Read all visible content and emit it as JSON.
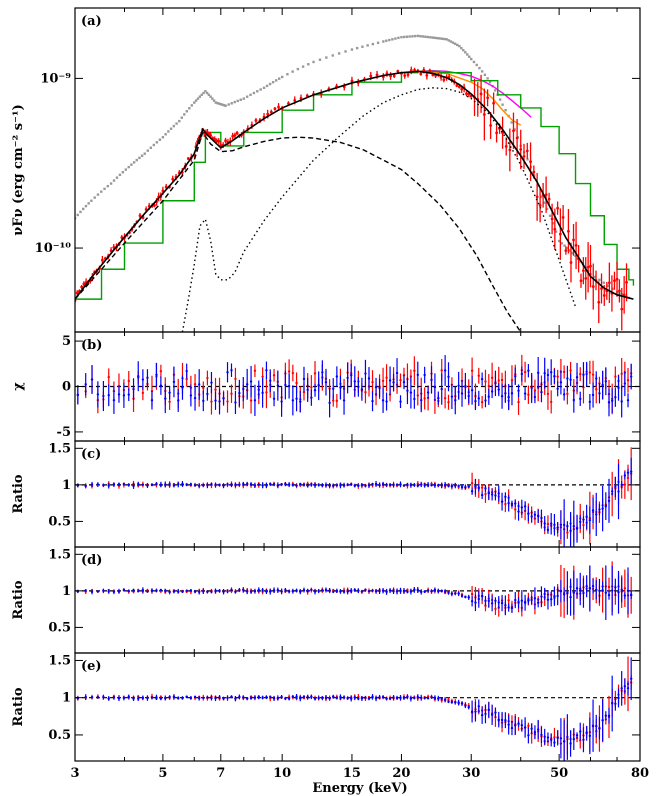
{
  "chart_data": [
    {
      "panel": "(a)",
      "type": "line",
      "ylabel": "νFν (erg cm⁻² s⁻¹)",
      "xscale": "log",
      "yscale": "log",
      "xlim": [
        3,
        80
      ],
      "ylim": [
        3.2e-11,
        2.6e-09
      ],
      "yticks": [
        {
          "value": 1e-10,
          "label": "10⁻¹⁰"
        },
        {
          "value": 1e-09,
          "label": "10⁻⁹"
        }
      ],
      "series": [
        {
          "name": "",
          "color": "#999999",
          "style": "gray-points",
          "x": [
            3.0,
            3.3,
            3.7,
            4.1,
            4.5,
            5.0,
            5.5,
            6.0,
            6.4,
            6.8,
            7.2,
            8.0,
            9.0,
            10.0,
            12.0,
            15.0,
            18.0,
            20.0,
            22.0,
            24.0,
            26.0,
            28.0,
            30.0,
            33.0,
            36.0,
            40.0,
            45.0,
            50.0,
            55.0,
            60.0,
            70.0,
            76.0
          ],
          "y": [
            1.5e-10,
            1.9e-10,
            2.4e-10,
            3e-10,
            3.6e-10,
            4.5e-10,
            5.6e-10,
            7.2e-10,
            8.4e-10,
            7.2e-10,
            6.9e-10,
            7.6e-10,
            8.8e-10,
            1.02e-09,
            1.25e-09,
            1.48e-09,
            1.65e-09,
            1.75e-09,
            1.78e-09,
            1.74e-09,
            1.7e-09,
            1.55e-09,
            1.3e-09,
            1e-09,
            7e-10,
            4e-10,
            2e-10,
            1.1e-10,
            9e-11,
            7e-11,
            5.5e-11,
            5e-11
          ]
        },
        {
          "name": "",
          "color": "#ff00ff",
          "style": "solid",
          "x": [
            22,
            24,
            26,
            28,
            30,
            32,
            34,
            36,
            38,
            40,
            42.5
          ],
          "y": [
            1.1e-09,
            1.11e-09,
            1.1e-09,
            1.07e-09,
            1.03e-09,
            9.7e-10,
            9e-10,
            8.2e-10,
            7.4e-10,
            6.7e-10,
            5.9e-10
          ]
        },
        {
          "name": "",
          "color": "#ff8c00",
          "style": "solid",
          "x": [
            22,
            26,
            30,
            32,
            34,
            36,
            38,
            40
          ],
          "y": [
            1.1e-09,
            1.07e-09,
            9.5e-10,
            8.7e-10,
            7.6e-10,
            6.5e-10,
            5.7e-10,
            5.3e-10
          ]
        },
        {
          "name": "",
          "color": "#00a000",
          "style": "step",
          "x": [
            3.0,
            3.5,
            4.0,
            5.0,
            6.0,
            6.4,
            7.0,
            8.0,
            10.0,
            12.0,
            15.0,
            20.0,
            22.0,
            25.0,
            30.0,
            35.0,
            40.0,
            45.0,
            50.0,
            55.0,
            60.0,
            65.0,
            70.0,
            75.0,
            77.0
          ],
          "y": [
            5e-11,
            7.5e-11,
            1.07e-10,
            1.9e-10,
            3.2e-10,
            4.8e-10,
            4e-10,
            4.8e-10,
            6.5e-10,
            8e-10,
            9.5e-10,
            1.08e-09,
            1.1e-09,
            1.08e-09,
            9.7e-10,
            8e-10,
            6.7e-10,
            5.2e-10,
            3.6e-10,
            2.4e-10,
            1.55e-10,
            1.05e-10,
            7.5e-11,
            6.5e-11,
            6e-11
          ]
        },
        {
          "name": "",
          "color": "#ff0000",
          "style": "data-points",
          "x": [
            3.0,
            3.2,
            3.4,
            3.7,
            4.0,
            4.3,
            4.7,
            5.0,
            5.5,
            6.0,
            6.3,
            6.6,
            7.0,
            7.5,
            8.0,
            9.0,
            10.0,
            12.0,
            15.0,
            18.0,
            20.0,
            22.0,
            24.0,
            26.0,
            28.0,
            30.0,
            33.0,
            36.0,
            40.0,
            44.0,
            48.0,
            52.0,
            56.0,
            60.0,
            65.0,
            70.0,
            75.0
          ],
          "y": [
            5e-11,
            6.2e-11,
            7.4e-11,
            9.5e-11,
            1.18e-10,
            1.42e-10,
            1.78e-10,
            2.1e-10,
            2.7e-10,
            3.6e-10,
            5e-10,
            4.6e-10,
            4.1e-10,
            4.4e-10,
            4.9e-10,
            6e-10,
            6.8e-10,
            8.2e-10,
            9.5e-10,
            1.04e-09,
            1.07e-09,
            1.1e-09,
            1.06e-09,
            1e-09,
            9e-10,
            8e-10,
            6.5e-10,
            5e-10,
            3.6e-10,
            2.5e-10,
            1.6e-10,
            1.2e-10,
            9e-11,
            6.5e-11,
            6e-11,
            5.5e-11,
            5e-11
          ]
        },
        {
          "name": "",
          "color": "#000000",
          "style": "solid-model",
          "x": [
            3.0,
            3.3,
            3.7,
            4.0,
            4.5,
            5.0,
            5.5,
            6.0,
            6.3,
            6.5,
            7.0,
            7.5,
            8.0,
            9.0,
            10.0,
            12.0,
            15.0,
            18.0,
            20.0,
            22.0,
            24.0,
            26.0,
            28.0,
            30.0,
            33.0,
            36.0,
            40.0,
            44.0,
            48.0,
            52.0,
            56.0,
            60.0,
            65.0,
            70.0,
            77.0
          ],
          "y": [
            5e-11,
            6.7e-11,
            9.3e-11,
            1.16e-10,
            1.6e-10,
            2.1e-10,
            2.7e-10,
            3.6e-10,
            5e-10,
            4.6e-10,
            3.9e-10,
            4.3e-10,
            4.8e-10,
            5.8e-10,
            6.7e-10,
            8e-10,
            9.4e-10,
            1.04e-09,
            1.08e-09,
            1.1e-09,
            1.07e-09,
            1.01e-09,
            9.2e-10,
            8.1e-10,
            6.5e-10,
            5e-10,
            3.5e-10,
            2.45e-10,
            1.65e-10,
            1.15e-10,
            8.8e-11,
            6.8e-11,
            5.8e-11,
            5.3e-11,
            5e-11
          ]
        },
        {
          "name": "",
          "color": "#000000",
          "style": "dashed",
          "x": [
            3.0,
            3.5,
            4.0,
            5.0,
            6.0,
            6.3,
            6.6,
            7.0,
            7.5,
            8.0,
            9.0,
            10.0,
            11.0,
            12.0,
            14.0,
            16.0,
            18.0,
            20.0,
            22.0,
            25.0,
            28.0,
            31.0,
            34.0,
            37.0,
            40.0
          ],
          "y": [
            5e-11,
            7.5e-11,
            1.07e-10,
            1.9e-10,
            3.3e-10,
            4.8e-10,
            4.1e-10,
            3.7e-10,
            3.75e-10,
            3.95e-10,
            4.25e-10,
            4.45e-10,
            4.5e-10,
            4.45e-10,
            4.2e-10,
            3.8e-10,
            3.3e-10,
            2.9e-10,
            2.4e-10,
            1.8e-10,
            1.3e-10,
            9e-11,
            6e-11,
            4.2e-11,
            3.2e-11
          ]
        },
        {
          "name": "",
          "color": "#000000",
          "style": "dotted",
          "x": [
            5.6,
            5.8,
            6.0,
            6.2,
            6.4,
            6.6,
            6.8,
            7.0,
            7.3,
            7.6,
            8.0,
            9.0,
            10.0,
            12.0,
            14.0,
            16.0,
            18.0,
            20.0,
            22.0,
            24.0,
            26.0,
            28.0,
            30.0,
            33.0,
            36.0,
            40.0,
            45.0,
            50.0,
            55.0
          ],
          "y": [
            3.2e-11,
            5e-11,
            8e-11,
            1.35e-10,
            1.48e-10,
            1.1e-10,
            7e-11,
            6.5e-11,
            6.5e-11,
            7.2e-11,
            9.5e-11,
            1.45e-10,
            2e-10,
            3.3e-10,
            4.6e-10,
            6e-10,
            7.2e-10,
            8e-10,
            8.6e-10,
            8.8e-10,
            8.7e-10,
            8.3e-10,
            7.6e-10,
            6.3e-10,
            4.8e-10,
            3.1e-10,
            1.7e-10,
            8.5e-11,
            4.5e-11
          ]
        }
      ]
    },
    {
      "panel": "(b)",
      "type": "scatter",
      "ylabel": "χ",
      "xscale": "log",
      "xlim": [
        3,
        80
      ],
      "ylim": [
        -6,
        6
      ],
      "yticks": [
        {
          "value": -5,
          "label": "-5"
        },
        {
          "value": 0,
          "label": "0"
        },
        {
          "value": 5,
          "label": "5"
        }
      ],
      "reference_line": 0,
      "residual_model": "chi",
      "series": [
        {
          "name": "",
          "color": "#ff0000",
          "spread": 1.8,
          "seed": 11
        },
        {
          "name": "",
          "color": "#0000ff",
          "spread": 1.8,
          "seed": 23
        }
      ]
    },
    {
      "panel": "(c)",
      "type": "scatter",
      "ylabel": "Ratio",
      "xscale": "log",
      "xlim": [
        3,
        80
      ],
      "ylim": [
        0.15,
        1.6
      ],
      "yticks": [
        {
          "value": 0.5,
          "label": "0.5"
        },
        {
          "value": 1,
          "label": "1"
        },
        {
          "value": 1.5,
          "label": "1.5"
        }
      ],
      "reference_line": 1,
      "ratio_trend": {
        "x": [
          3,
          25,
          30,
          35,
          40,
          45,
          50,
          55,
          60,
          65,
          70,
          80
        ],
        "y": [
          1.0,
          1.0,
          0.96,
          0.84,
          0.68,
          0.5,
          0.38,
          0.44,
          0.56,
          0.68,
          0.95,
          1.3
        ]
      },
      "series": [
        {
          "name": "",
          "color": "#ff0000",
          "seed": 31
        },
        {
          "name": "",
          "color": "#0000ff",
          "seed": 47
        }
      ]
    },
    {
      "panel": "(d)",
      "type": "scatter",
      "ylabel": "Ratio",
      "xscale": "log",
      "xlim": [
        3,
        80
      ],
      "ylim": [
        0.15,
        1.6
      ],
      "yticks": [
        {
          "value": 0.5,
          "label": "0.5"
        },
        {
          "value": 1,
          "label": "1"
        },
        {
          "value": 1.5,
          "label": "1.5"
        }
      ],
      "reference_line": 1,
      "ratio_trend": {
        "x": [
          3,
          25,
          28,
          32,
          36,
          40,
          45,
          50,
          55,
          60,
          65,
          80
        ],
        "y": [
          1.0,
          1.0,
          0.95,
          0.86,
          0.8,
          0.82,
          0.88,
          0.95,
          1.0,
          1.0,
          1.0,
          1.0
        ]
      },
      "series": [
        {
          "name": "",
          "color": "#ff0000",
          "seed": 53
        },
        {
          "name": "",
          "color": "#0000ff",
          "seed": 67
        }
      ]
    },
    {
      "panel": "(e)",
      "type": "scatter",
      "ylabel": "Ratio",
      "xlabel": "Energy (keV)",
      "xscale": "log",
      "xlim": [
        3,
        80
      ],
      "ylim": [
        0.15,
        1.6
      ],
      "yticks": [
        {
          "value": 0.5,
          "label": "0.5"
        },
        {
          "value": 1,
          "label": "1"
        },
        {
          "value": 1.5,
          "label": "1.5"
        }
      ],
      "xticks": [
        3,
        5,
        7,
        10,
        15,
        20,
        30,
        50,
        80
      ],
      "reference_line": 1,
      "ratio_trend": {
        "x": [
          3,
          24,
          28,
          32,
          36,
          40,
          45,
          50,
          55,
          60,
          65,
          70,
          80
        ],
        "y": [
          1.0,
          1.0,
          0.93,
          0.82,
          0.7,
          0.6,
          0.5,
          0.4,
          0.45,
          0.55,
          0.7,
          1.0,
          1.35
        ]
      },
      "series": [
        {
          "name": "",
          "color": "#ff0000",
          "seed": 71
        },
        {
          "name": "",
          "color": "#0000ff",
          "seed": 89
        }
      ]
    }
  ]
}
